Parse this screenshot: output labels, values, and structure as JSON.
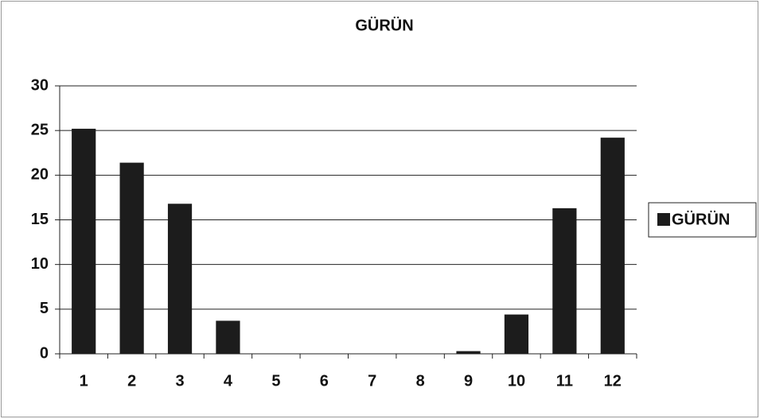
{
  "chart_data": {
    "type": "bar",
    "title": "GÜRÜN",
    "categories": [
      "1",
      "2",
      "3",
      "4",
      "5",
      "6",
      "7",
      "8",
      "9",
      "10",
      "11",
      "12"
    ],
    "series": [
      {
        "name": "GÜRÜN",
        "color": "#1c1c1c",
        "values": [
          25.2,
          21.4,
          16.8,
          3.7,
          0,
          0,
          0,
          0,
          0.3,
          4.4,
          16.3,
          24.2
        ]
      }
    ],
    "ylim": [
      0,
      30
    ],
    "yticks": [
      0,
      5,
      10,
      15,
      20,
      25,
      30
    ],
    "grid": true,
    "legend": "right"
  }
}
